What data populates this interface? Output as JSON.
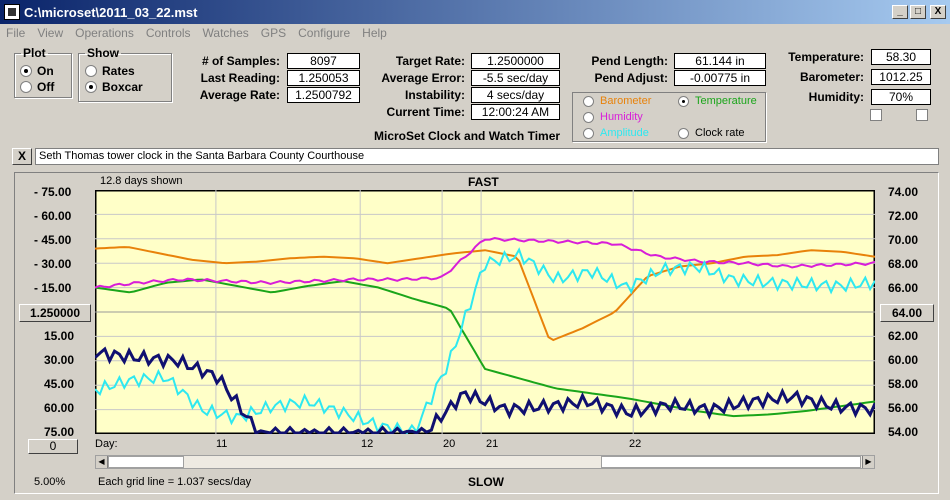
{
  "window": {
    "title": "C:\\microset\\2011_03_22.mst",
    "min": "_",
    "max": "□",
    "close": "X"
  },
  "menu": [
    "File",
    "View",
    "Operations",
    "Controls",
    "Watches",
    "GPS",
    "Configure",
    "Help"
  ],
  "plot": {
    "legend": "Plot",
    "on": "On",
    "off": "Off",
    "selected": "On"
  },
  "show": {
    "legend": "Show",
    "rates": "Rates",
    "boxcar": "Boxcar",
    "selected": "Boxcar"
  },
  "stats": {
    "samples_label": "# of Samples:",
    "samples": "8097",
    "last_label": "Last Reading:",
    "last": "1.250053",
    "avg_rate_label": "Average Rate:",
    "avg_rate": "1.2500792",
    "target_label": "Target Rate:",
    "target": "1.2500000",
    "avg_err_label": "Average Error:",
    "avg_err": "-5.5 sec/day",
    "instab_label": "Instability:",
    "instab": "4 secs/day",
    "time_label": "Current Time:",
    "time": "12:00:24 AM",
    "pend_len_label": "Pend Length:",
    "pend_len": "61.144 in",
    "pend_adj_label": "Pend Adjust:",
    "pend_adj": "-0.00775 in",
    "temp_label": "Temperature:",
    "temp": "58.30",
    "baro_label": "Barometer:",
    "baro": "1012.25",
    "hum_label": "Humidity:",
    "hum": "70%"
  },
  "sensors": {
    "barometer": "Barometer",
    "temperature": "Temperature",
    "humidity": "Humidity",
    "amplitude": "Amplitude",
    "clockrate": "Clock rate",
    "selected": "Temperature"
  },
  "colors": {
    "barometer": "#e8820a",
    "temperature": "#1aa51a",
    "humidity": "#d81ed8",
    "amplitude": "#2ee8f0",
    "clockrate": "#101070",
    "plotbg": "#ffffc8"
  },
  "app_caption": "MicroSet Clock and Watch Timer",
  "description": "Seth Thomas tower clock in the Santa Barbara County Courthouse",
  "close_desc": "X",
  "chart": {
    "days_shown": "12.8 days shown",
    "fast": "FAST",
    "slow": "SLOW",
    "center_left": "1.250000",
    "center_right": "64.00",
    "zero_btn": "0",
    "day_label": "Day:",
    "grid_note": "Each grid line = 1.037 secs/day",
    "percent": "5.00%",
    "left_ticks": [
      "- 75.00",
      "- 60.00",
      "- 45.00",
      "- 30.00",
      "- 15.00",
      "15.00",
      "30.00",
      "45.00",
      "60.00",
      "75.00"
    ],
    "right_ticks": [
      "74.00",
      "72.00",
      "70.00",
      "68.00",
      "66.00",
      "62.00",
      "60.00",
      "58.00",
      "56.00",
      "54.00"
    ],
    "day_ticks": [
      "11",
      "12",
      "20",
      "21",
      "22"
    ]
  },
  "chart_data": {
    "type": "line",
    "x_label": "Day:",
    "y_left_range": [
      -75,
      75
    ],
    "y_right_range": [
      54,
      74
    ],
    "day_ticks": [
      "11",
      "12",
      "20",
      "21",
      "22"
    ],
    "series": [
      {
        "name": "Barometer",
        "color": "#e8820a",
        "values": [
          39,
          40,
          36,
          32,
          30,
          31,
          33,
          34,
          33,
          30,
          33,
          36,
          38,
          34,
          -18,
          -10,
          0,
          22,
          28,
          30,
          34,
          35,
          38,
          37,
          34
        ]
      },
      {
        "name": "Temperature",
        "color": "#1aa51a",
        "values": [
          15,
          12,
          18,
          20,
          16,
          12,
          16,
          19,
          15,
          8,
          2,
          -35,
          -41,
          -47,
          -50,
          -53,
          -57,
          -61,
          -64,
          -63,
          -61,
          -58,
          -55
        ]
      },
      {
        "name": "Humidity",
        "color": "#d81ed8",
        "values": [
          15,
          18,
          20,
          19,
          18,
          19,
          20,
          20,
          21,
          45,
          44,
          43,
          42,
          34,
          31,
          30,
          28,
          29,
          30
        ]
      },
      {
        "name": "Amplitude",
        "color": "#2ee8f0",
        "values": [
          -48,
          -42,
          -40,
          -60,
          -65,
          -58,
          -55,
          -62,
          -70,
          -74,
          -30,
          30,
          35,
          20,
          25,
          15,
          26,
          28,
          20,
          18,
          17,
          16,
          18
        ]
      },
      {
        "name": "Clock rate",
        "color": "#101070",
        "values": [
          -25,
          -28,
          -30,
          -40,
          -75,
          -75,
          -75,
          -75,
          -75,
          -50,
          -60,
          -58,
          -55,
          -62,
          -57,
          -60,
          -55,
          -52,
          -58,
          -60
        ]
      }
    ]
  }
}
